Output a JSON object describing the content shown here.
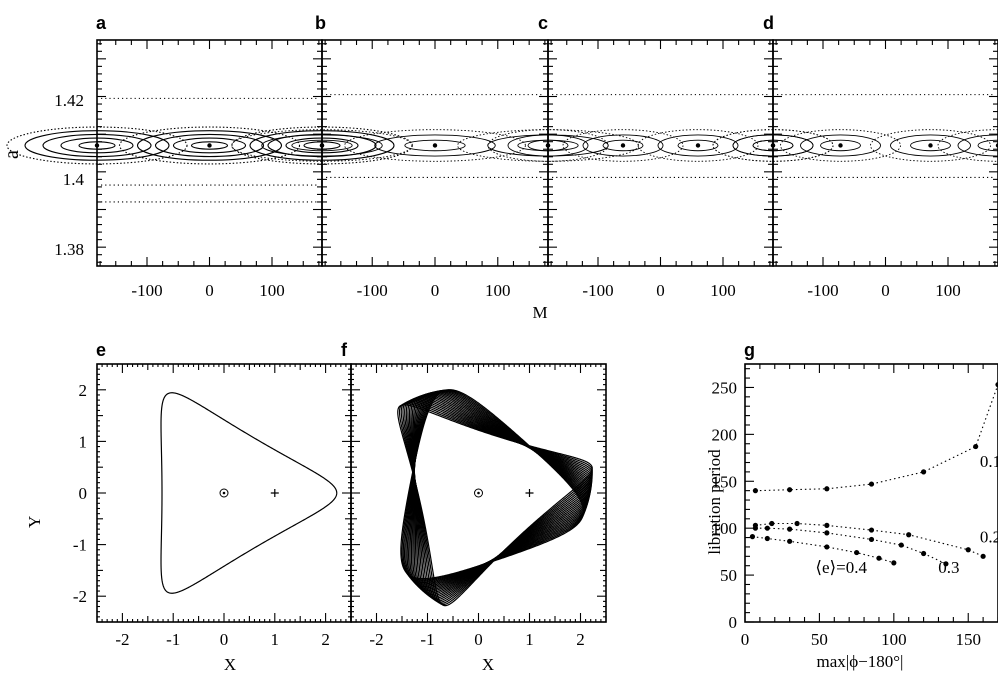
{
  "panels": {
    "a": {
      "label": "a"
    },
    "b": {
      "label": "b"
    },
    "c": {
      "label": "c"
    },
    "d": {
      "label": "d"
    },
    "e": {
      "label": "e"
    },
    "f": {
      "label": "f"
    },
    "g": {
      "label": "g"
    }
  },
  "top_row": {
    "xlabel": "M",
    "ylabel": "a",
    "x_ticks": [
      "-100",
      "0",
      "100"
    ],
    "y_ticks": [
      "1.42",
      "1.4",
      "1.38"
    ]
  },
  "orbit_panels": {
    "xlabel": "X",
    "ylabel": "Y",
    "ticks": [
      "-2",
      "-1",
      "0",
      "1",
      "2"
    ]
  },
  "chart_data": [
    {
      "type": "scatter",
      "panel": "a",
      "description_of_content": "surface of section, one island chain",
      "xlim": [
        -180,
        180
      ],
      "ylim": [
        1.375,
        1.435
      ],
      "islands_centers_M": [
        -180,
        0,
        180
      ],
      "island_center_a": 1.407
    },
    {
      "type": "scatter",
      "panel": "b",
      "xlim": [
        -180,
        180
      ],
      "ylim": [
        1.375,
        1.435
      ],
      "islands_centers_M": [
        -180,
        0,
        180
      ],
      "island_center_a": 1.407
    },
    {
      "type": "scatter",
      "panel": "c",
      "xlim": [
        -180,
        180
      ],
      "ylim": [
        1.375,
        1.435
      ],
      "islands_centers_M": [
        -180,
        -60,
        60,
        180
      ],
      "island_center_a": 1.407
    },
    {
      "type": "scatter",
      "panel": "d",
      "xlim": [
        -180,
        180
      ],
      "ylim": [
        1.375,
        1.435
      ],
      "islands_centers_M": [
        -180,
        -72,
        72,
        180
      ],
      "island_center_a": 1.407
    },
    {
      "type": "line",
      "panel": "e",
      "xlim": [
        -2.5,
        2.5
      ],
      "ylim": [
        -2.5,
        2.5
      ],
      "xlabel": "X",
      "ylabel": "Y"
    },
    {
      "type": "line",
      "panel": "f",
      "xlim": [
        -2.5,
        2.5
      ],
      "ylim": [
        -2.5,
        2.5
      ],
      "xlabel": "X"
    },
    {
      "type": "line",
      "panel": "g",
      "xlabel": "max|ϕ−180°|",
      "ylabel": "libration period",
      "xlim": [
        0,
        170
      ],
      "ylim": [
        0,
        275
      ],
      "x_ticks": [
        0,
        50,
        100,
        150
      ],
      "y_ticks": [
        0,
        50,
        100,
        150,
        200,
        250
      ],
      "series": [
        {
          "name": "0.1",
          "x": [
            7,
            30,
            55,
            85,
            120,
            155,
            170
          ],
          "y": [
            140,
            141,
            142,
            147,
            160,
            187,
            253
          ]
        },
        {
          "name": "0.2",
          "x": [
            7,
            18,
            35,
            55,
            85,
            110,
            150,
            160
          ],
          "y": [
            103,
            105,
            105,
            103,
            98,
            93,
            77,
            70
          ]
        },
        {
          "name": "0.3",
          "x": [
            7,
            15,
            30,
            55,
            85,
            105,
            120,
            135
          ],
          "y": [
            100,
            100,
            99,
            95,
            88,
            82,
            73,
            62
          ]
        },
        {
          "name": "⟨e⟩=0.4",
          "x": [
            5,
            15,
            30,
            55,
            75,
            90,
            100
          ],
          "y": [
            91,
            89,
            86,
            80,
            74,
            68,
            63
          ]
        }
      ],
      "series_labels": [
        "0.1",
        "0.2",
        "0.3",
        "⟨e⟩=0.4"
      ]
    }
  ]
}
